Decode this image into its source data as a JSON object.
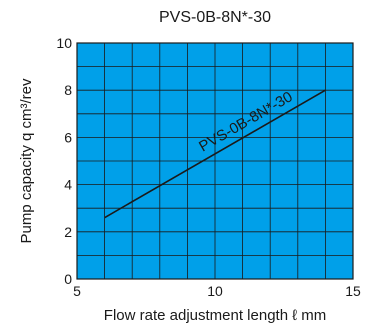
{
  "chart_data": {
    "type": "line",
    "title": "PVS-0B-8N*-30",
    "xlabel": "Flow rate adjustment length ℓ mm",
    "ylabel": "Pump capacity q cm³/rev",
    "xlim": [
      5,
      15
    ],
    "ylim": [
      0,
      10
    ],
    "xticks": [
      "5",
      "10",
      "15"
    ],
    "yticks": [
      "0",
      "2",
      "4",
      "6",
      "8",
      "10"
    ],
    "grid": true,
    "plot_background": "#00a0e9",
    "series": [
      {
        "name": "PVS-0B-8N*-30",
        "x": [
          6.0,
          14.0
        ],
        "y": [
          2.6,
          8.0
        ],
        "color": "#1a1a1a"
      }
    ]
  }
}
